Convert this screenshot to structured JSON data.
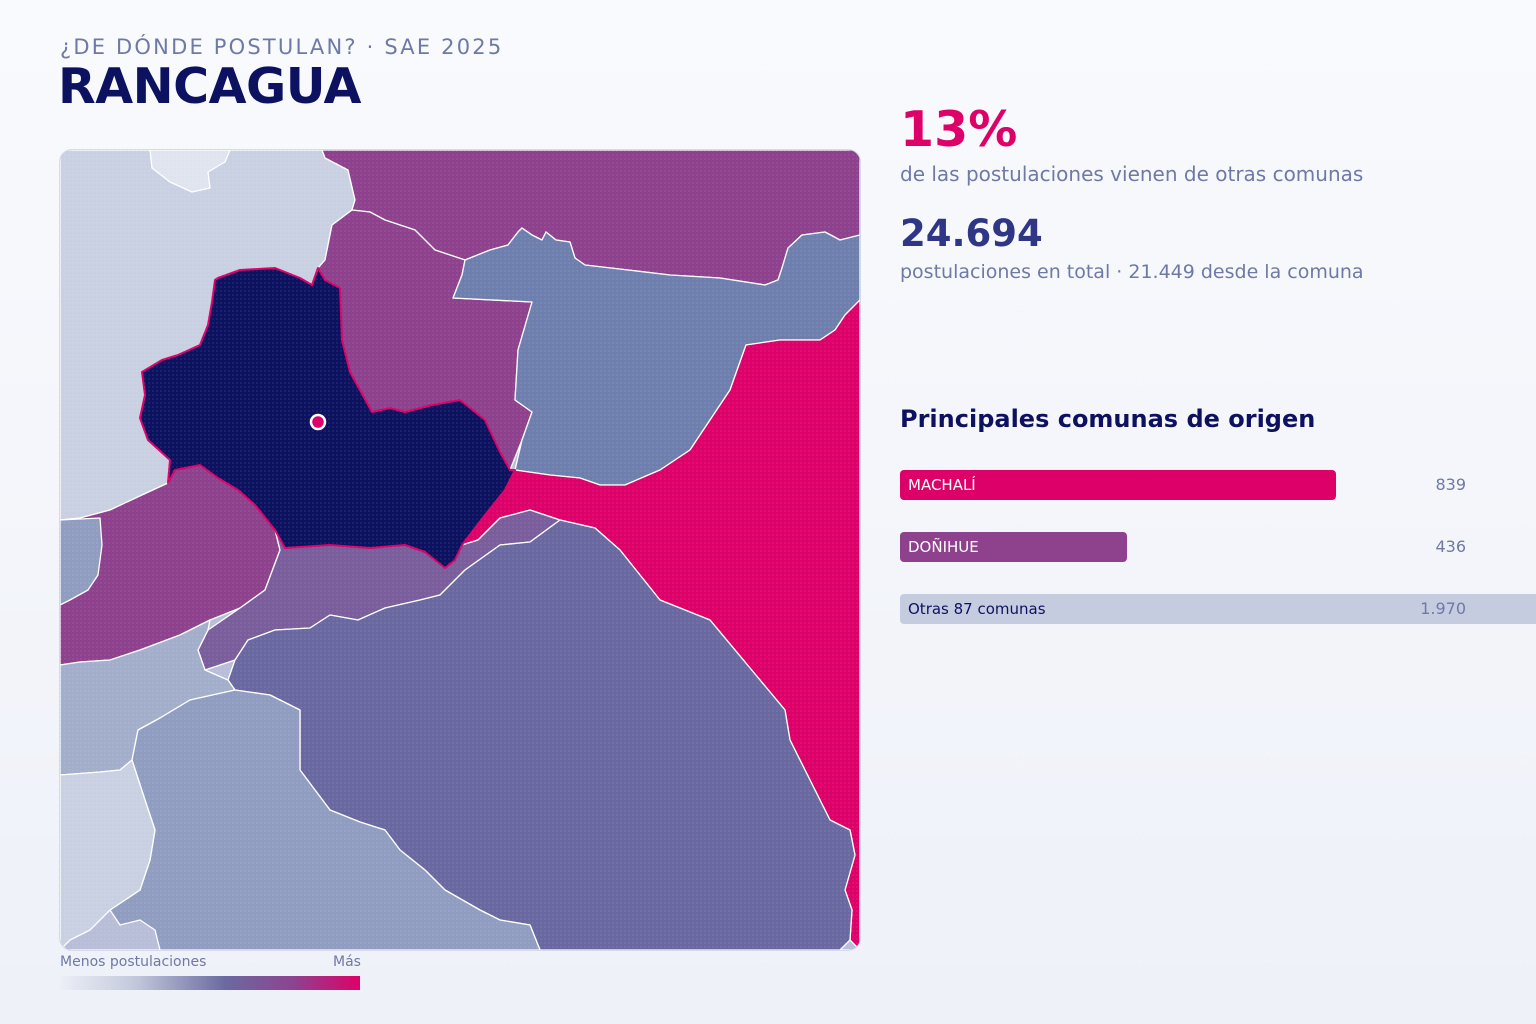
{
  "header": {
    "kicker": "¿DE DÓNDE POSTULAN? · SAE 2025",
    "title": "RANCAGUA"
  },
  "stats": {
    "percent": "13%",
    "percent_label": "de las postulaciones vienen de otras comunas",
    "total": "24.694",
    "total_label": "postulaciones en total · 21.449 desde la comuna"
  },
  "ranking": {
    "title": "Principales comunas de origen",
    "items": [
      {
        "name": "MACHALÍ",
        "value": "839",
        "share": 0.426,
        "color": "#dc0068"
      },
      {
        "name": "DOÑIHUE",
        "value": "436",
        "share": 0.221,
        "color": "#8e418c"
      },
      {
        "name": "Otras 87 comunas",
        "value": "1.970",
        "share": 1.0,
        "color": "#c5cce0"
      }
    ]
  },
  "legend": {
    "min_label": "Menos postulaciones",
    "max_label": "Más",
    "gradient_colors": [
      "#eceff7",
      "#c3c9dc",
      "#6b6aa0",
      "#8d4390",
      "#df0068"
    ]
  },
  "map": {
    "selected_commune": "RANCAGUA",
    "selected_color": "#0d1260",
    "marker_color": "#dc0068",
    "region_colors": {
      "highest": "#dc0068",
      "high": "#8e418c",
      "mid_high": "#7a5d9b",
      "mid": "#6a68a0",
      "mid_low": "#6e7fad",
      "low": "#909dc0",
      "lower": "#a3aecb",
      "lowest": "#c8d0e2"
    }
  }
}
